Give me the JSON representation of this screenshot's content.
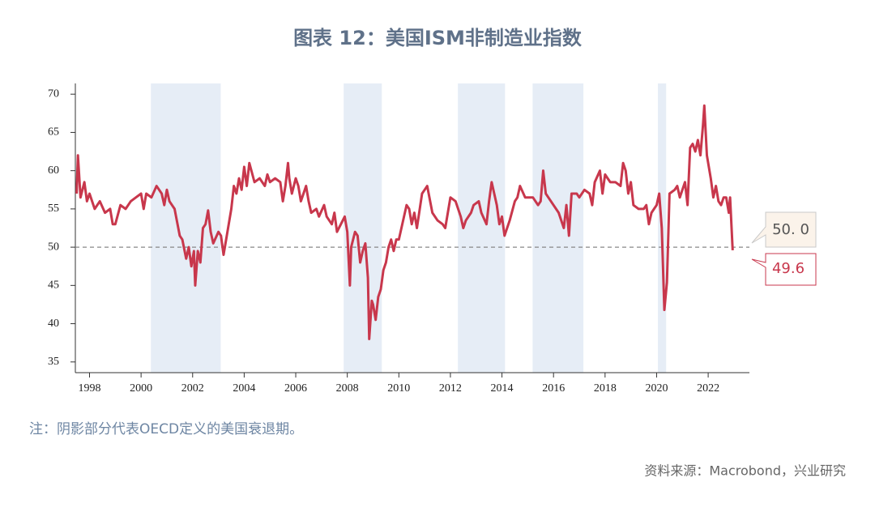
{
  "chart_data": {
    "type": "line",
    "title": "图表 12：美国ISM非制造业指数",
    "note": "注：阴影部分代表OECD定义的美国衰退期。",
    "source": "资料来源：Macrobond，兴业研究",
    "xlim": [
      1997.45,
      2023.6
    ],
    "ylim": [
      33.6,
      71.4
    ],
    "xticks": [
      1998,
      2000,
      2002,
      2004,
      2006,
      2008,
      2010,
      2012,
      2014,
      2016,
      2018,
      2020,
      2022
    ],
    "yticks": [
      35,
      40,
      45,
      50,
      55,
      60,
      65,
      70
    ],
    "recession_periods": [
      [
        2000.38,
        2003.09
      ],
      [
        2007.86,
        2009.34
      ],
      [
        2012.29,
        2014.12
      ],
      [
        2015.19,
        2017.16
      ],
      [
        2020.05,
        2020.37
      ]
    ],
    "recession_color": "#e6edf6",
    "reference_line": {
      "value": 50,
      "value_label": "50. 0"
    },
    "last_value": {
      "value": 49.6,
      "value_label": "49.6"
    },
    "x": [
      1997.5,
      1997.55,
      1997.65,
      1997.8,
      1997.9,
      1998.0,
      1998.2,
      1998.4,
      1998.6,
      1998.8,
      1998.9,
      1999.0,
      1999.2,
      1999.4,
      1999.6,
      1999.8,
      2000.0,
      2000.1,
      2000.2,
      2000.4,
      2000.6,
      2000.8,
      2000.9,
      2001.0,
      2001.1,
      2001.3,
      2001.5,
      2001.6,
      2001.75,
      2001.85,
      2001.95,
      2002.05,
      2002.1,
      2002.2,
      2002.3,
      2002.4,
      2002.5,
      2002.6,
      2002.7,
      2002.8,
      2003.0,
      2003.1,
      2003.2,
      2003.35,
      2003.5,
      2003.6,
      2003.7,
      2003.8,
      2003.9,
      2004.0,
      2004.1,
      2004.2,
      2004.4,
      2004.6,
      2004.8,
      2004.9,
      2005.0,
      2005.2,
      2005.4,
      2005.5,
      2005.6,
      2005.7,
      2005.75,
      2005.85,
      2006.0,
      2006.1,
      2006.2,
      2006.3,
      2006.4,
      2006.5,
      2006.6,
      2006.8,
      2006.9,
      2007.1,
      2007.2,
      2007.4,
      2007.5,
      2007.6,
      2007.75,
      2007.9,
      2008.0,
      2008.1,
      2008.15,
      2008.3,
      2008.4,
      2008.5,
      2008.6,
      2008.7,
      2008.8,
      2008.85,
      2008.95,
      2009.0,
      2009.1,
      2009.2,
      2009.3,
      2009.4,
      2009.5,
      2009.6,
      2009.7,
      2009.8,
      2009.9,
      2010.0,
      2010.2,
      2010.3,
      2010.4,
      2010.5,
      2010.6,
      2010.7,
      2010.9,
      2011.0,
      2011.1,
      2011.3,
      2011.5,
      2011.7,
      2011.8,
      2012.0,
      2012.2,
      2012.4,
      2012.5,
      2012.6,
      2012.8,
      2012.9,
      2013.1,
      2013.2,
      2013.4,
      2013.5,
      2013.6,
      2013.8,
      2013.9,
      2014.0,
      2014.1,
      2014.3,
      2014.5,
      2014.6,
      2014.7,
      2014.9,
      2015.0,
      2015.2,
      2015.4,
      2015.5,
      2015.6,
      2015.7,
      2015.9,
      2016.0,
      2016.2,
      2016.4,
      2016.5,
      2016.6,
      2016.7,
      2016.9,
      2017.0,
      2017.2,
      2017.4,
      2017.5,
      2017.6,
      2017.8,
      2017.9,
      2018.0,
      2018.1,
      2018.2,
      2018.4,
      2018.6,
      2018.7,
      2018.8,
      2018.9,
      2019.0,
      2019.1,
      2019.3,
      2019.5,
      2019.6,
      2019.7,
      2019.8,
      2019.9,
      2020.0,
      2020.1,
      2020.2,
      2020.3,
      2020.4,
      2020.5,
      2020.7,
      2020.8,
      2020.9,
      2021.0,
      2021.1,
      2021.2,
      2021.3,
      2021.4,
      2021.5,
      2021.6,
      2021.7,
      2021.8,
      2021.85,
      2021.95,
      2022.1,
      2022.2,
      2022.3,
      2022.4,
      2022.5,
      2022.6,
      2022.7,
      2022.8,
      2022.85,
      2022.95
    ],
    "series": [
      {
        "name": "ISM非制造业指数",
        "color": "#c8374c",
        "values": [
          57,
          62,
          56.5,
          58.5,
          56,
          57,
          55,
          56,
          54.5,
          55,
          53,
          53,
          55.5,
          55,
          56,
          56.5,
          57,
          55,
          57,
          56.5,
          58,
          57,
          55.5,
          57.5,
          56,
          55,
          51.5,
          51,
          48.5,
          50,
          47.5,
          49.5,
          45,
          49.5,
          48,
          52.5,
          53,
          54.8,
          52,
          50.5,
          52,
          51.5,
          49,
          52,
          55,
          58,
          57,
          59,
          57.5,
          60.5,
          58,
          61,
          58.5,
          59,
          58,
          59.5,
          58.5,
          59,
          58.5,
          56,
          58,
          61,
          59,
          57,
          59,
          58,
          56,
          57,
          58,
          56,
          54.5,
          55,
          54,
          55.5,
          54,
          53,
          54.5,
          52,
          53,
          54,
          52,
          45,
          50,
          52,
          51.5,
          48,
          49.5,
          50.5,
          46,
          38,
          43,
          42.5,
          40.5,
          43.5,
          44.5,
          47,
          48,
          50,
          51,
          49.5,
          51,
          51,
          54,
          55.5,
          55,
          53,
          54.5,
          52.5,
          57,
          57.5,
          58,
          54.5,
          53.5,
          53,
          52.5,
          56.5,
          56,
          54,
          52.5,
          53.5,
          54.5,
          55.5,
          56,
          54.5,
          53,
          56,
          58.5,
          55.5,
          53,
          54,
          51.5,
          53.5,
          56,
          56.5,
          58,
          56.5,
          56.5,
          56.5,
          55.5,
          56,
          60,
          57,
          56,
          55.5,
          54.5,
          52.5,
          55.5,
          51.5,
          57,
          57,
          56.5,
          57.5,
          57,
          55.5,
          58.5,
          60,
          57,
          59.5,
          59,
          58.5,
          58.5,
          58,
          61,
          60,
          57,
          58.5,
          55.5,
          55,
          55,
          55.5,
          53,
          54.5,
          55,
          55.5,
          57,
          52.5,
          41.8,
          45.4,
          57,
          57.5,
          58,
          56.5,
          57.5,
          58.5,
          55.5,
          63,
          63.5,
          62.5,
          64,
          62,
          66,
          68.5,
          62,
          59,
          56.5,
          58,
          56,
          55.5,
          56.5,
          56.5,
          54.5,
          56.5,
          49.6
        ]
      }
    ]
  }
}
